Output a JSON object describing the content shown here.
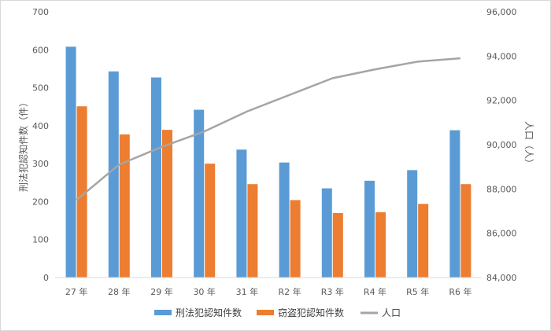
{
  "chart_data": {
    "type": "bar",
    "categories": [
      "27 年",
      "28 年",
      "29 年",
      "30 年",
      "31 年",
      "R2 年",
      "R3 年",
      "R4 年",
      "R5 年",
      "R6 年"
    ],
    "series": [
      {
        "name": "刑法犯認知件数",
        "type": "bar",
        "axis": "left",
        "color": "#5b9bd5",
        "values": [
          608,
          543,
          527,
          442,
          337,
          303,
          235,
          255,
          283,
          388
        ]
      },
      {
        "name": "窃盗犯認知件数",
        "type": "bar",
        "axis": "left",
        "color": "#ed7d31",
        "values": [
          451,
          377,
          389,
          300,
          246,
          204,
          170,
          172,
          194,
          246
        ]
      },
      {
        "name": "人口",
        "type": "line",
        "axis": "right",
        "color": "#a5a5a5",
        "values": [
          87500,
          89100,
          89900,
          90600,
          91500,
          92250,
          93000,
          93400,
          93750,
          93900
        ]
      }
    ],
    "ylabel": "刑法犯認知件数（件）",
    "y2label": "人口（人）",
    "ylim": [
      0,
      700
    ],
    "yticks": [
      "0",
      "100",
      "200",
      "300",
      "400",
      "500",
      "600",
      "700"
    ],
    "y2lim": [
      84000,
      96000
    ],
    "y2ticks": [
      "84,000",
      "86,000",
      "88,000",
      "90,000",
      "92,000",
      "94,000",
      "96,000"
    ],
    "grid": false,
    "legend": "bottom"
  }
}
